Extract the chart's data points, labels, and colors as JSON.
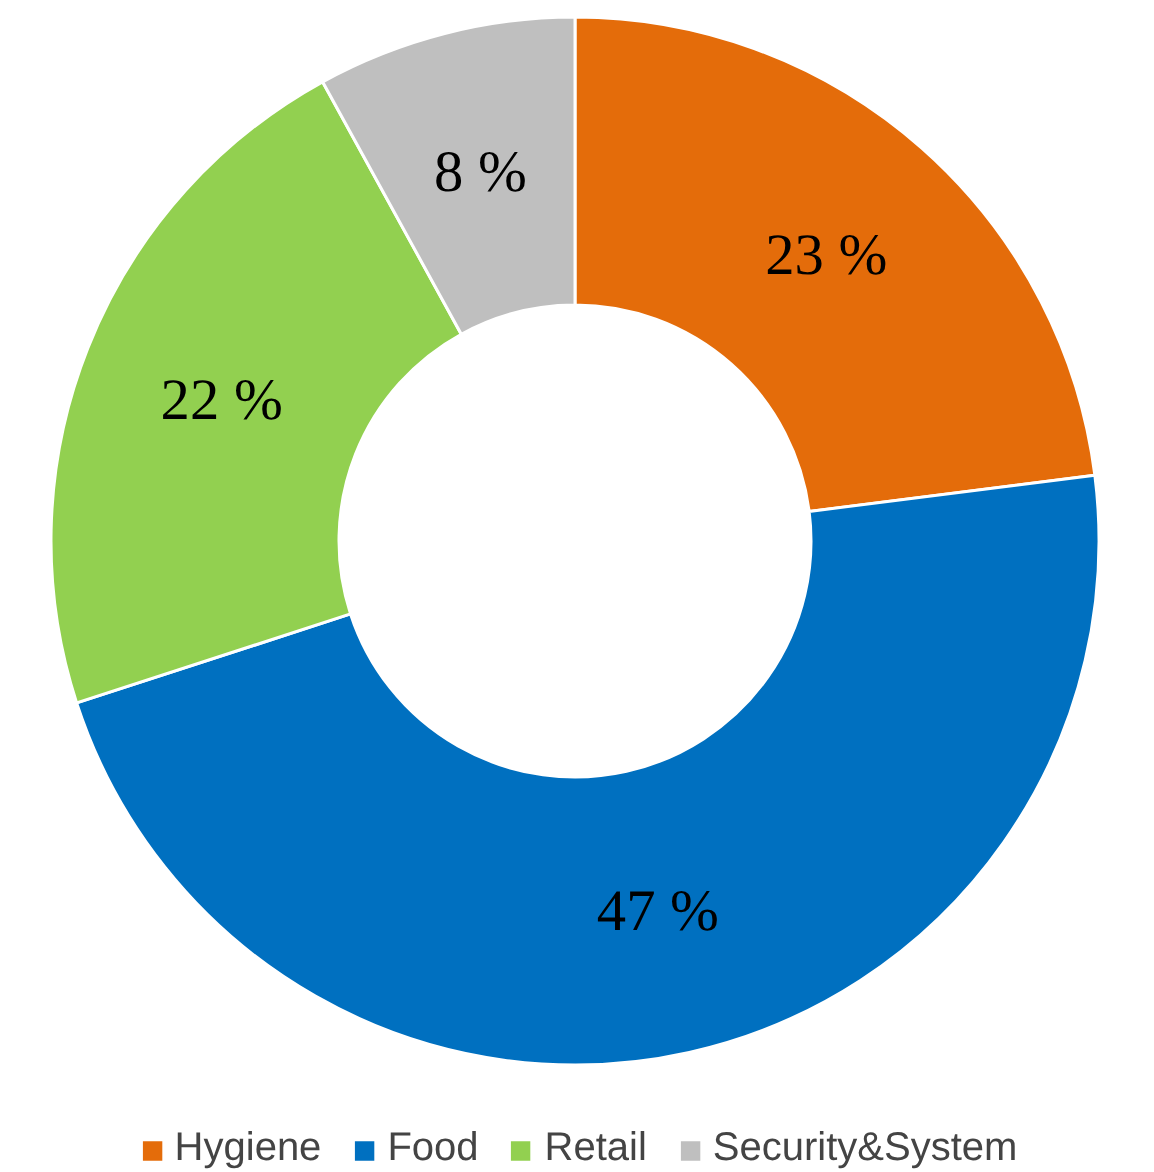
{
  "chart_data": {
    "type": "donut",
    "categories": [
      "Hygiene",
      "Food",
      "Retail",
      "Security&System"
    ],
    "values": [
      23,
      47,
      22,
      8
    ],
    "colors": [
      "#e46c0a",
      "#0070c0",
      "#92d050",
      "#bfbfbf"
    ],
    "value_labels": [
      "23 %",
      "47 %",
      "22 %",
      "8 %"
    ],
    "legend": "bottom"
  }
}
